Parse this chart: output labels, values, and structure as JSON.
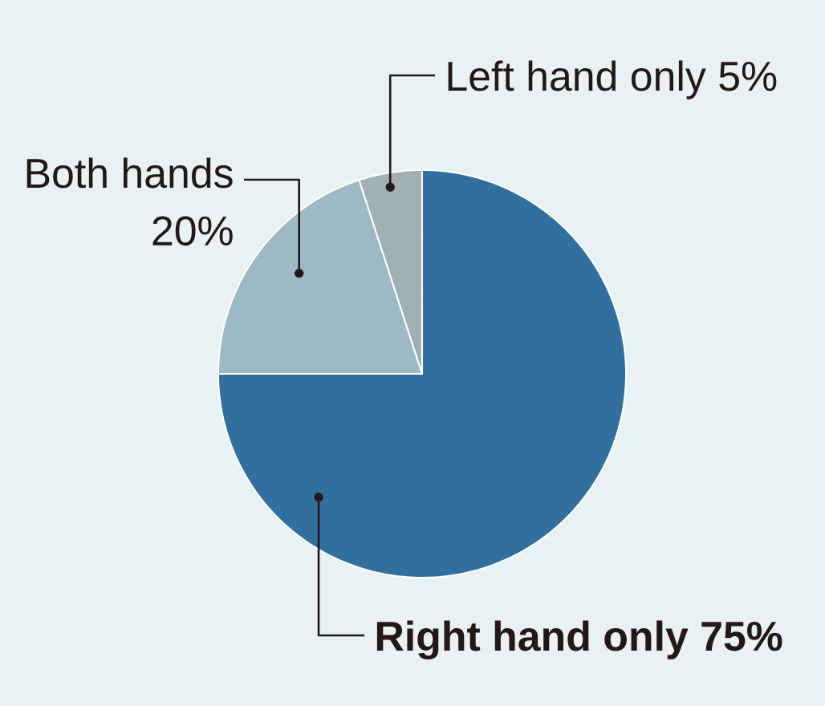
{
  "chart_data": {
    "type": "pie",
    "categories": [
      "Right hand only",
      "Both hands",
      "Left hand only"
    ],
    "values": [
      75,
      20,
      5
    ],
    "colors": [
      "#31709e",
      "#9db9c3",
      "#a1b0b5"
    ],
    "value_labels": [
      "75%",
      "20%",
      "5%"
    ]
  }
}
